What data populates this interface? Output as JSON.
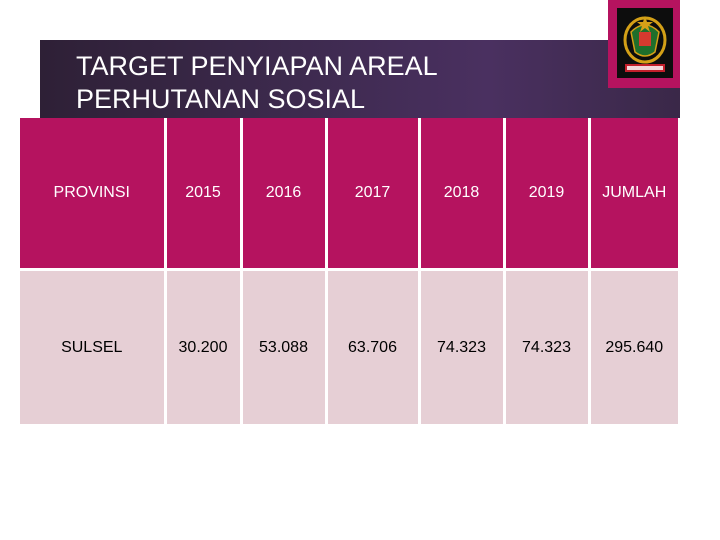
{
  "title": "TARGET PENYIAPAN AREAL\nPERHUTANAN SOSIAL",
  "logo": {
    "icon": "government-emblem-icon",
    "accent": "#b5135f"
  },
  "table": {
    "headers": [
      "PROVINSI",
      "2015",
      "2016",
      "2017",
      "2018",
      "2019",
      "JUMLAH"
    ],
    "rows": [
      [
        "SULSEL",
        "30.200",
        "53.088",
        "63.706",
        "74.323",
        "74.323",
        "295.640"
      ]
    ]
  },
  "colors": {
    "header_bg": "#b5135f",
    "row_bg": "#e6cfd5",
    "title_band": "#3d2a4e"
  }
}
